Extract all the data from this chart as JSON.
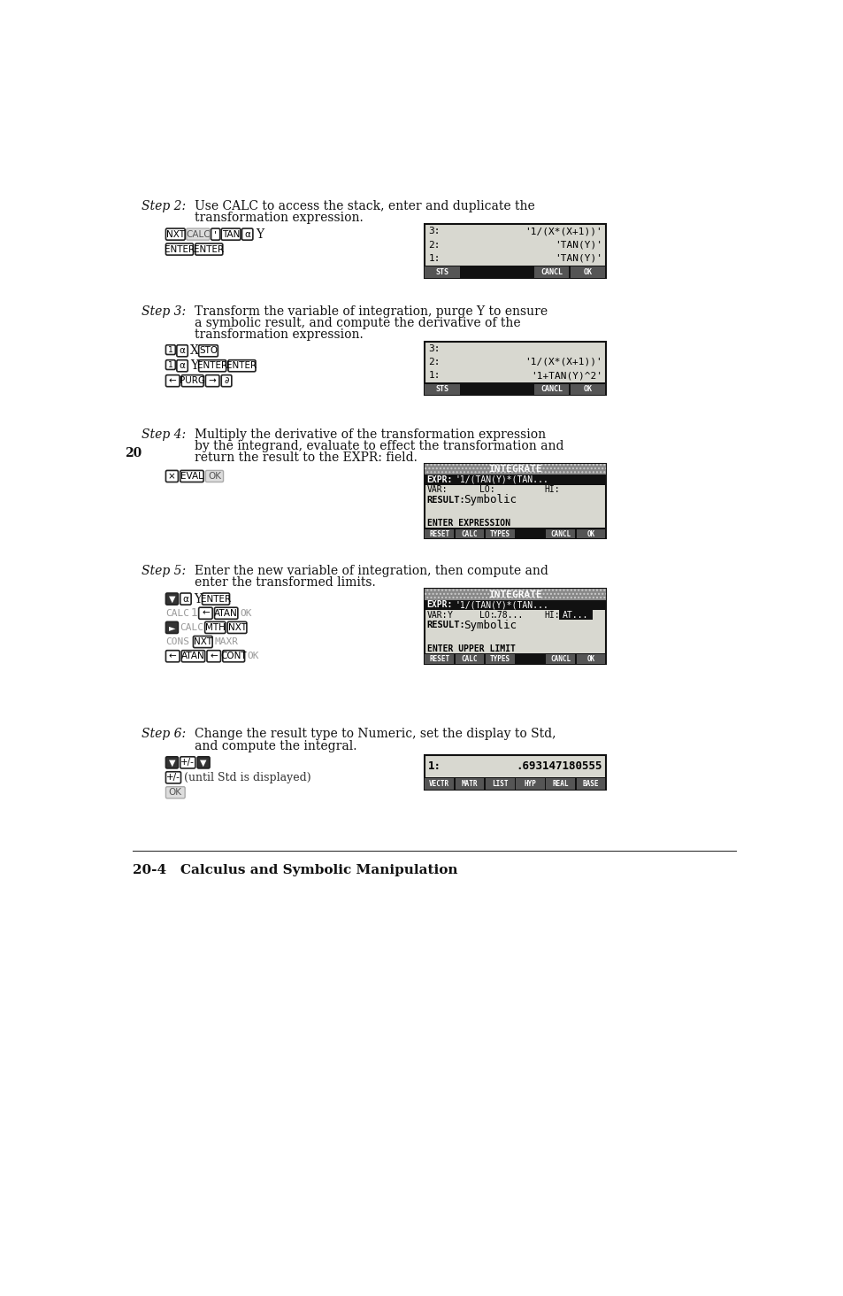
{
  "bg_color": "#ffffff",
  "title": "20-4   Calculus and Symbolic Manipulation",
  "steps": [
    {
      "step_label": "Step 2:",
      "step_text_line1": "Use CALC to access the stack, enter and duplicate the",
      "step_text_line2": "transformation expression.",
      "screen": {
        "type": "stack",
        "rows": [
          {
            "num": "3:",
            "val": "'1/(X*(X+1))'"
          },
          {
            "num": "2:",
            "val": "'TAN(Y)'"
          },
          {
            "num": "1:",
            "val": "'TAN(Y)'"
          }
        ],
        "menu": [
          "STS",
          "",
          "",
          "CANCL",
          "OK"
        ]
      }
    },
    {
      "step_label": "Step 3:",
      "step_text_line1": "Transform the variable of integration, purge Y to ensure",
      "step_text_line2": "a symbolic result, and compute the derivative of the",
      "step_text_line3": "transformation expression.",
      "screen": {
        "type": "stack",
        "rows": [
          {
            "num": "3:",
            "val": ""
          },
          {
            "num": "2:",
            "val": "'1/(X*(X+1))'"
          },
          {
            "num": "1:",
            "val": "'1+TAN(Y)^2'"
          }
        ],
        "menu": [
          "STS",
          "",
          "",
          "CANCL",
          "OK"
        ]
      }
    },
    {
      "step_label": "Step 4:",
      "step_text_line1": "Multiply the derivative of the transformation expression",
      "step_text_line2": "by the integrand, evaluate to effect the transformation and",
      "step_text_line3": "return the result to the EXPR: field.",
      "screen": {
        "type": "integrate",
        "title_bar": "INTEGRATE",
        "expr_val": "'1/(TAN(Y)*(TAN...",
        "var_val": "",
        "lo_val": "",
        "hi_val": "",
        "result_val": "Symbolic",
        "status": "ENTER EXPRESSION",
        "menu": [
          "RESET",
          "CALC",
          "TYPES",
          "",
          "CANCL",
          "OK"
        ]
      }
    },
    {
      "step_label": "Step 5:",
      "step_text_line1": "Enter the new variable of integration, then compute and",
      "step_text_line2": "enter the transformed limits.",
      "screen": {
        "type": "integrate",
        "title_bar": "INTEGRATE",
        "expr_val": "'1/(TAN(Y)*(TAN...",
        "var_val": "Y",
        "lo_val": ".78...",
        "hi_val": "AT...",
        "result_val": "Symbolic",
        "status": "ENTER UPPER LIMIT",
        "menu": [
          "RESET",
          "CALC",
          "TYPES",
          "",
          "CANCL",
          "OK"
        ]
      }
    },
    {
      "step_label": "Step 6:",
      "step_text_line1": "Change the result type to Numeric, set the display to Std,",
      "step_text_line2": "and compute the integral.",
      "screen": {
        "type": "stack1",
        "rows": [
          {
            "num": "1:",
            "val": ".693147180555"
          }
        ],
        "menu": [
          "VECTR",
          "MATR",
          "LIST",
          "HYP",
          "REAL",
          "BASE"
        ]
      }
    }
  ]
}
